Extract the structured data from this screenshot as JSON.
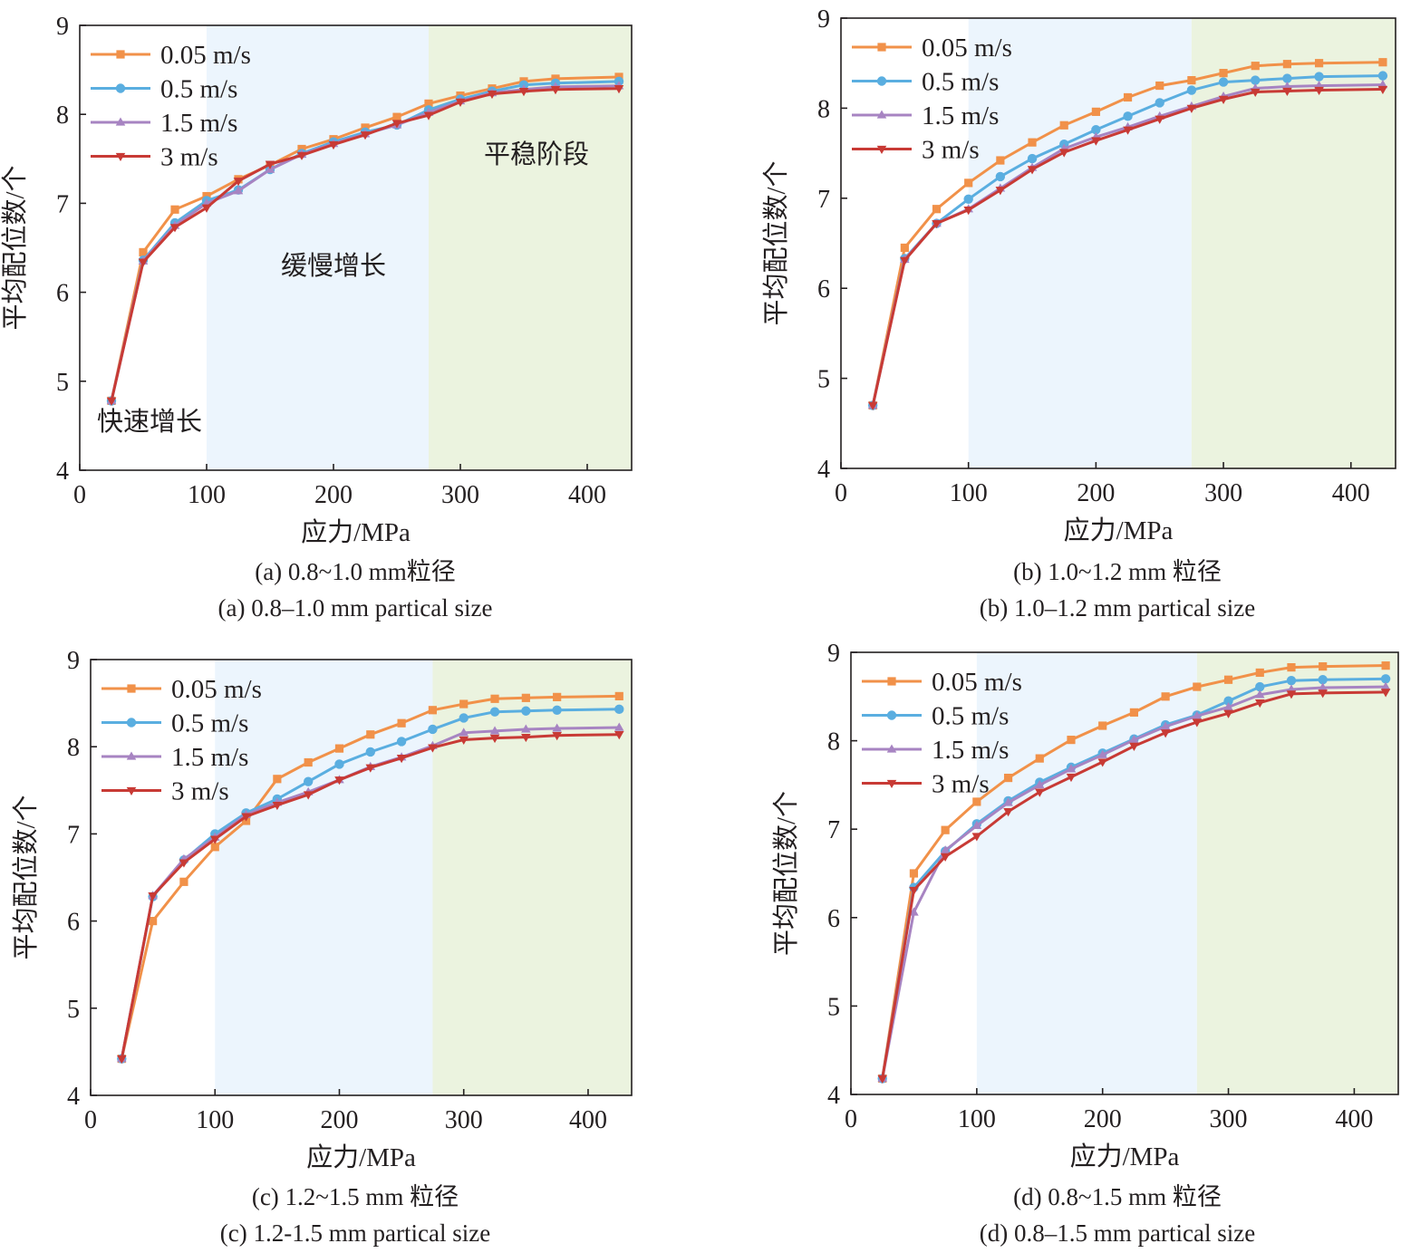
{
  "colors": {
    "rapid_zone": "#ffffff",
    "slow_zone": "#ecf5fd",
    "stable_zone": "#ebf3df",
    "axis": "#231f20",
    "series": [
      "#f19149",
      "#5aaee0",
      "#a784c2",
      "#c83a35"
    ]
  },
  "chart_data": [
    {
      "id": "a",
      "type": "line",
      "xlabel": "应力/MPa",
      "ylabel": "平均配位数/个",
      "xlim": [
        0,
        435
      ],
      "ylim": [
        4,
        9
      ],
      "xticks": [
        0,
        100,
        200,
        300,
        400
      ],
      "yticks": [
        4,
        5,
        6,
        7,
        8,
        9
      ],
      "zones": {
        "slow_start": 100,
        "stable_start": 275
      },
      "zone_labels": [
        {
          "text": "快速增长",
          "x": 55,
          "y": 4.45
        },
        {
          "text": "缓慢增长",
          "x": 200,
          "y": 6.2
        },
        {
          "text": "平稳阶段",
          "x": 360,
          "y": 7.45
        }
      ],
      "caption_cn": "(a) 0.8~1.0 mm粒径",
      "caption_en": "(a) 0.8–1.0 mm partical size",
      "x": [
        25,
        50,
        75,
        100,
        125,
        150,
        175,
        200,
        225,
        250,
        275,
        300,
        325,
        350,
        375,
        425
      ],
      "series": [
        {
          "name": "0.05 m/s",
          "marker": "square",
          "values": [
            4.78,
            6.45,
            6.93,
            7.08,
            7.27,
            7.43,
            7.61,
            7.72,
            7.85,
            7.97,
            8.12,
            8.21,
            8.29,
            8.37,
            8.4,
            8.42
          ]
        },
        {
          "name": "0.5 m/s",
          "marker": "circle",
          "values": [
            4.78,
            6.36,
            6.78,
            7.03,
            7.15,
            7.38,
            7.56,
            7.69,
            7.8,
            7.88,
            8.05,
            8.17,
            8.26,
            8.33,
            8.35,
            8.37
          ]
        },
        {
          "name": "1.5 m/s",
          "marker": "triangle-up",
          "values": [
            4.78,
            6.35,
            6.75,
            7.0,
            7.14,
            7.38,
            7.55,
            7.67,
            7.78,
            7.88,
            8.02,
            8.15,
            8.24,
            8.28,
            8.31,
            8.32
          ]
        },
        {
          "name": "3 m/s",
          "marker": "triangle-down",
          "values": [
            4.78,
            6.34,
            6.73,
            6.95,
            7.25,
            7.44,
            7.54,
            7.66,
            7.77,
            7.9,
            7.99,
            8.14,
            8.23,
            8.26,
            8.28,
            8.29
          ]
        }
      ]
    },
    {
      "id": "b",
      "type": "line",
      "xlabel": "应力/MPa",
      "ylabel": "平均配位数/个",
      "xlim": [
        0,
        435
      ],
      "ylim": [
        4,
        9
      ],
      "xticks": [
        0,
        100,
        200,
        300,
        400
      ],
      "yticks": [
        4,
        5,
        6,
        7,
        8,
        9
      ],
      "zones": {
        "slow_start": 100,
        "stable_start": 275
      },
      "zone_labels": [],
      "caption_cn": "(b) 1.0~1.2 mm 粒径",
      "caption_en": "(b) 1.0–1.2 mm partical size",
      "x": [
        25,
        50,
        75,
        100,
        125,
        150,
        175,
        200,
        225,
        250,
        275,
        300,
        325,
        350,
        375,
        425
      ],
      "series": [
        {
          "name": "0.05 m/s",
          "marker": "square",
          "values": [
            4.7,
            6.45,
            6.88,
            7.17,
            7.42,
            7.62,
            7.81,
            7.96,
            8.12,
            8.25,
            8.31,
            8.39,
            8.47,
            8.49,
            8.5,
            8.51
          ]
        },
        {
          "name": "0.5 m/s",
          "marker": "circle",
          "values": [
            4.7,
            6.33,
            6.72,
            6.99,
            7.24,
            7.44,
            7.6,
            7.76,
            7.91,
            8.06,
            8.2,
            8.29,
            8.31,
            8.33,
            8.35,
            8.36
          ]
        },
        {
          "name": "1.5 m/s",
          "marker": "triangle-up",
          "values": [
            4.7,
            6.32,
            6.72,
            6.88,
            7.11,
            7.34,
            7.55,
            7.68,
            7.79,
            7.91,
            8.02,
            8.13,
            8.22,
            8.24,
            8.25,
            8.26
          ]
        },
        {
          "name": "3 m/s",
          "marker": "triangle-down",
          "values": [
            4.7,
            6.31,
            6.72,
            6.87,
            7.09,
            7.32,
            7.51,
            7.64,
            7.76,
            7.88,
            8.0,
            8.1,
            8.18,
            8.19,
            8.2,
            8.21
          ]
        }
      ]
    },
    {
      "id": "c",
      "type": "line",
      "xlabel": "应力/MPa",
      "ylabel": "平均配位数/个",
      "xlim": [
        0,
        435
      ],
      "ylim": [
        4,
        9
      ],
      "xticks": [
        0,
        100,
        200,
        300,
        400
      ],
      "yticks": [
        4,
        5,
        6,
        7,
        8,
        9
      ],
      "zones": {
        "slow_start": 100,
        "stable_start": 275
      },
      "zone_labels": [],
      "caption_cn": "(c) 1.2~1.5 mm 粒径",
      "caption_en": "(c) 1.2-1.5 mm partical size",
      "x": [
        25,
        50,
        75,
        100,
        125,
        150,
        175,
        200,
        225,
        250,
        275,
        300,
        325,
        350,
        375,
        425
      ],
      "series": [
        {
          "name": "0.05 m/s",
          "marker": "square",
          "values": [
            4.42,
            6.0,
            6.45,
            6.85,
            7.15,
            7.63,
            7.82,
            7.98,
            8.14,
            8.27,
            8.42,
            8.49,
            8.55,
            8.56,
            8.57,
            8.58
          ]
        },
        {
          "name": "0.5 m/s",
          "marker": "circle",
          "values": [
            4.42,
            6.28,
            6.7,
            7.0,
            7.24,
            7.4,
            7.6,
            7.8,
            7.94,
            8.06,
            8.2,
            8.33,
            8.4,
            8.41,
            8.42,
            8.43
          ]
        },
        {
          "name": "1.5 m/s",
          "marker": "triangle-up",
          "values": [
            4.42,
            6.29,
            6.71,
            6.96,
            7.22,
            7.36,
            7.48,
            7.62,
            7.77,
            7.88,
            8.01,
            8.16,
            8.18,
            8.2,
            8.21,
            8.22
          ]
        },
        {
          "name": "3 m/s",
          "marker": "triangle-down",
          "values": [
            4.42,
            6.29,
            6.67,
            6.94,
            7.2,
            7.33,
            7.45,
            7.62,
            7.76,
            7.87,
            7.99,
            8.08,
            8.1,
            8.11,
            8.13,
            8.14
          ]
        }
      ]
    },
    {
      "id": "d",
      "type": "line",
      "xlabel": "应力/MPa",
      "ylabel": "平均配位数/个",
      "xlim": [
        0,
        435
      ],
      "ylim": [
        4,
        9
      ],
      "xticks": [
        0,
        100,
        200,
        300,
        400
      ],
      "yticks": [
        4,
        5,
        6,
        7,
        8,
        9
      ],
      "zones": {
        "slow_start": 100,
        "stable_start": 275
      },
      "zone_labels": [],
      "caption_cn": "(d)  0.8~1.5 mm 粒径",
      "caption_en": "(d) 0.8–1.5 mm partical size",
      "x": [
        25,
        50,
        75,
        100,
        125,
        150,
        175,
        200,
        225,
        250,
        275,
        300,
        325,
        350,
        375,
        425
      ],
      "series": [
        {
          "name": "0.05 m/s",
          "marker": "square",
          "values": [
            4.18,
            6.5,
            6.99,
            7.31,
            7.58,
            7.8,
            8.01,
            8.17,
            8.32,
            8.5,
            8.61,
            8.69,
            8.77,
            8.83,
            8.84,
            8.85
          ]
        },
        {
          "name": "0.5 m/s",
          "marker": "circle",
          "values": [
            4.18,
            6.34,
            6.75,
            7.06,
            7.32,
            7.53,
            7.7,
            7.86,
            8.02,
            8.18,
            8.29,
            8.45,
            8.61,
            8.68,
            8.69,
            8.7
          ]
        },
        {
          "name": "1.5 m/s",
          "marker": "triangle-up",
          "values": [
            4.18,
            6.06,
            6.76,
            7.04,
            7.3,
            7.5,
            7.68,
            7.84,
            8.01,
            8.16,
            8.28,
            8.38,
            8.52,
            8.58,
            8.6,
            8.61
          ]
        },
        {
          "name": "3 m/s",
          "marker": "triangle-down",
          "values": [
            4.18,
            6.31,
            6.69,
            6.92,
            7.2,
            7.42,
            7.59,
            7.76,
            7.94,
            8.09,
            8.21,
            8.31,
            8.43,
            8.53,
            8.54,
            8.55
          ]
        }
      ]
    }
  ]
}
